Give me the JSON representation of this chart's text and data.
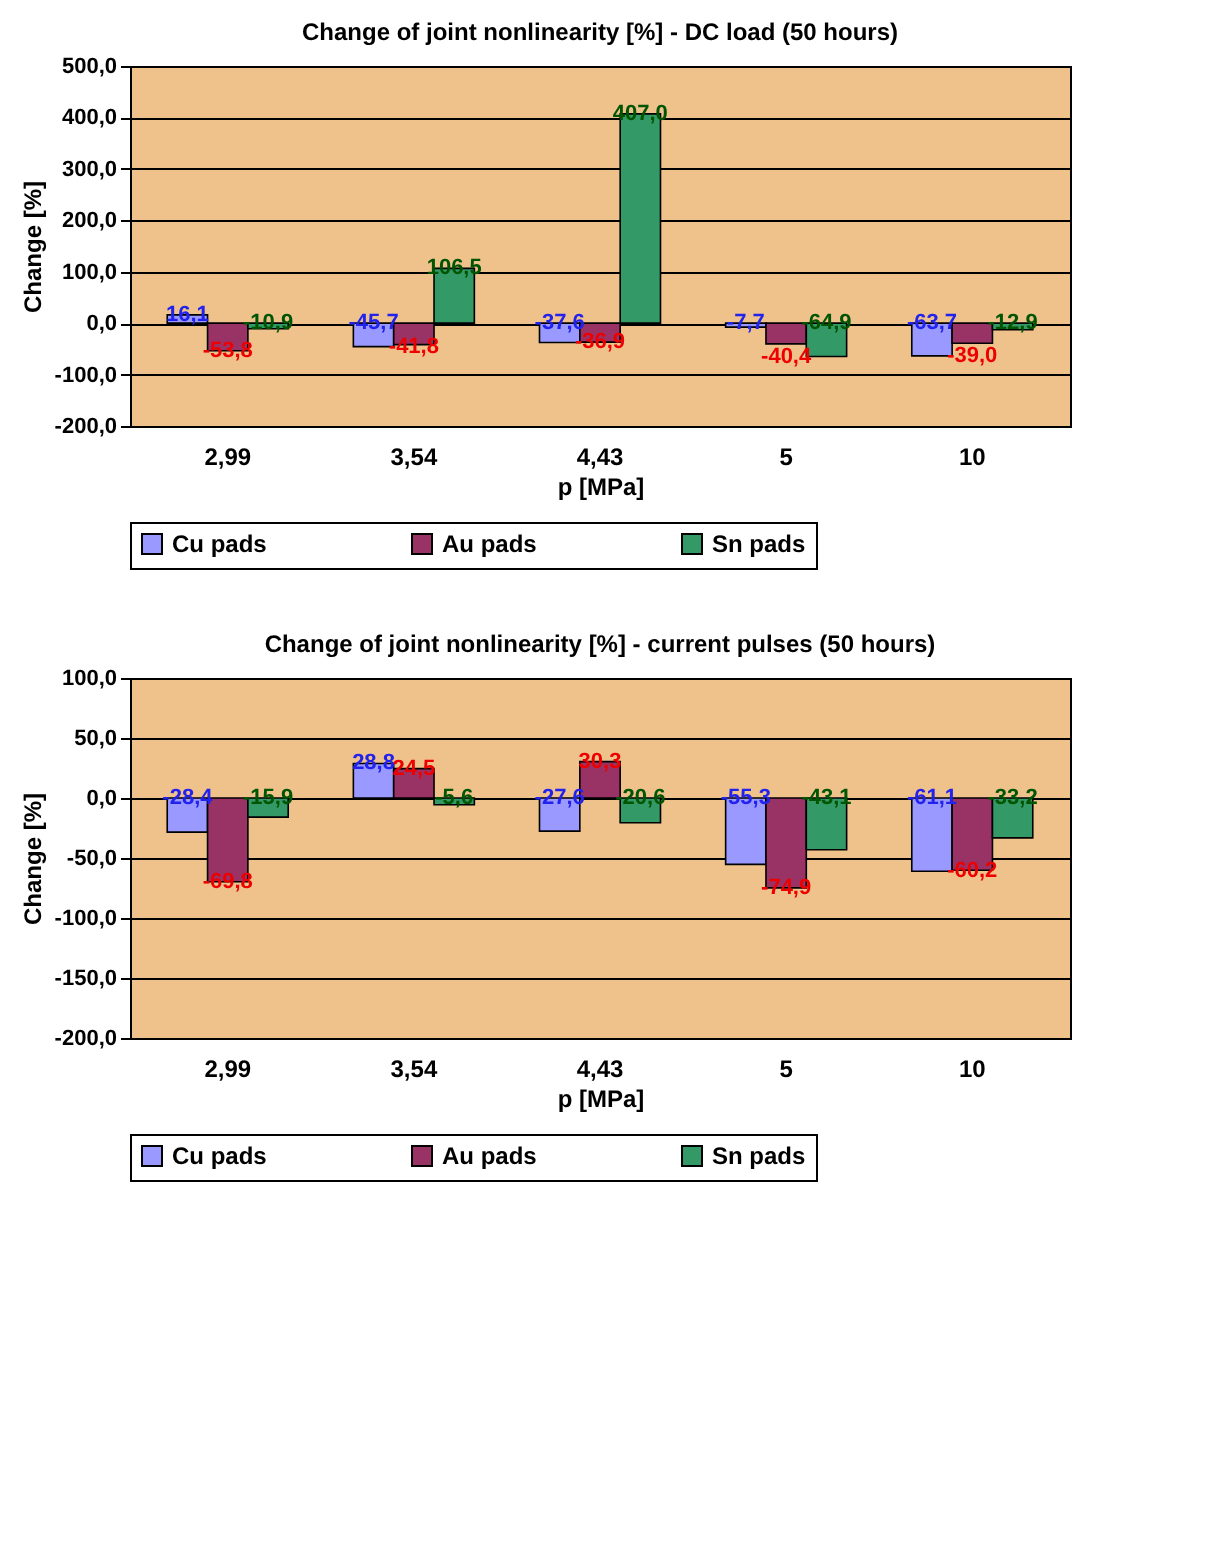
{
  "chart_data": [
    {
      "type": "bar",
      "title": "Change of joint nonlinearity [%] - DC load (50 hours)",
      "xlabel": "p [MPa]",
      "ylabel": "Change [%]",
      "categories": [
        "2,99",
        "3,54",
        "4,43",
        "5",
        "10"
      ],
      "series": [
        {
          "name": "Cu pads",
          "color": "#9999ff",
          "values": [
            16.1,
            -45.7,
            -37.6,
            -7.7,
            -63.7
          ],
          "value_labels": [
            "16,1",
            "-45,7",
            "-37,6",
            "-7,7",
            "-63,7"
          ]
        },
        {
          "name": "Au pads",
          "color": "#993366",
          "values": [
            -53.8,
            -41.8,
            -36.9,
            -40.4,
            -39.0
          ],
          "value_labels": [
            "-53,8",
            "-41,8",
            "-36,9",
            "-40,4",
            "-39,0"
          ]
        },
        {
          "name": "Sn pads",
          "color": "#339966",
          "values": [
            -10.9,
            106.5,
            407.0,
            -64.9,
            -12.9
          ],
          "value_labels": [
            "-10,9",
            "106,5",
            "407,0",
            "-64,9",
            "-12,9"
          ]
        }
      ],
      "ylim": [
        -200,
        500
      ],
      "yticks": [
        {
          "value": -200,
          "label": "-200,0"
        },
        {
          "value": -100,
          "label": "-100,0"
        },
        {
          "value": 0,
          "label": "0,0"
        },
        {
          "value": 100,
          "label": "100,0"
        },
        {
          "value": 200,
          "label": "200,0"
        },
        {
          "value": 300,
          "label": "300,0"
        },
        {
          "value": 400,
          "label": "400,0"
        },
        {
          "value": 500,
          "label": "500,0"
        }
      ],
      "grid": "y",
      "legend": "bottom",
      "data_labels": false
    },
    {
      "type": "bar",
      "title": "Change of joint nonlinearity [%] - current pulses (50 hours)",
      "xlabel": "p [MPa]",
      "ylabel": "Change [%]",
      "categories": [
        "2,99",
        "3,54",
        "4,43",
        "5",
        "10"
      ],
      "series": [
        {
          "name": "Cu pads",
          "color": "#9999ff",
          "values": [
            -28.4,
            28.8,
            -27.6,
            -55.3,
            -61.1
          ],
          "value_labels": [
            "-28,4",
            "28,8",
            "-27,6",
            "-55,3",
            "-61,1"
          ]
        },
        {
          "name": "Au pads",
          "color": "#993366",
          "values": [
            -69.8,
            24.5,
            30.3,
            -74.9,
            -60.2
          ],
          "value_labels": [
            "-69,8",
            "24,5",
            "30,3",
            "-74,9",
            "-60,2"
          ]
        },
        {
          "name": "Sn pads",
          "color": "#339966",
          "values": [
            -15.9,
            -5.6,
            -20.6,
            -43.1,
            -33.2
          ],
          "value_labels": [
            "-15,9",
            "-5,6",
            "-20,6",
            "-43,1",
            "-33,2"
          ]
        }
      ],
      "ylim": [
        -200,
        100
      ],
      "yticks": [
        {
          "value": -200,
          "label": "-200,0"
        },
        {
          "value": -150,
          "label": "-150,0"
        },
        {
          "value": -100,
          "label": "-100,0"
        },
        {
          "value": -50,
          "label": "-50,0"
        },
        {
          "value": 0,
          "label": "0,0"
        },
        {
          "value": 50,
          "label": "50,0"
        },
        {
          "value": 100,
          "label": "100,0"
        }
      ],
      "grid": "y",
      "legend": "bottom",
      "data_labels": false
    }
  ]
}
